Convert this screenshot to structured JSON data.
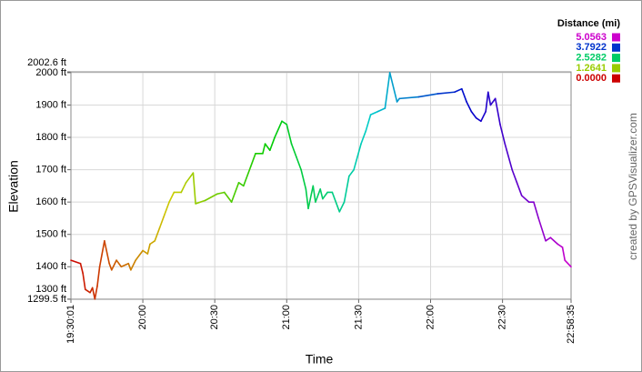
{
  "chart_data": {
    "type": "line",
    "ylabel": "Elevation",
    "xlabel": "Time",
    "credit": "created by GPSVisualizer.com",
    "x": [
      "19:30:01",
      "19:34",
      "19:35",
      "19:36",
      "19:38",
      "19:39",
      "19:40",
      "19:41",
      "19:42",
      "19:43",
      "19:44",
      "19:46",
      "19:47",
      "19:49",
      "19:51",
      "19:54",
      "19:55",
      "19:57",
      "20:00",
      "20:02",
      "20:03",
      "20:05",
      "20:07",
      "20:09",
      "20:11",
      "20:13",
      "20:16",
      "20:18",
      "20:20",
      "20:21",
      "20:22",
      "20:26",
      "20:31",
      "20:34",
      "20:37",
      "20:40",
      "20:42",
      "20:45",
      "20:47",
      "20:50",
      "20:51",
      "20:53",
      "20:55",
      "20:58",
      "21:00",
      "21:02",
      "21:04",
      "21:06",
      "21:08",
      "21:09",
      "21:11",
      "21:12",
      "21:14",
      "21:15",
      "21:17",
      "21:19",
      "21:22",
      "21:24",
      "21:26",
      "21:28",
      "21:31",
      "21:33",
      "21:35",
      "21:38",
      "21:41",
      "21:43",
      "21:46",
      "21:47",
      "21:55",
      "22:03",
      "22:10",
      "22:13",
      "22:15",
      "22:17",
      "22:19",
      "22:21",
      "22:23",
      "22:24",
      "22:25",
      "22:27",
      "22:29",
      "22:31",
      "22:34",
      "22:36",
      "22:38",
      "22:41",
      "22:43",
      "22:45",
      "22:48",
      "22:50",
      "22:53",
      "22:55",
      "22:56",
      "22:58:35"
    ],
    "values": [
      1420,
      1410,
      1380,
      1330,
      1320,
      1335,
      1300,
      1340,
      1400,
      1440,
      1480,
      1410,
      1390,
      1420,
      1400,
      1410,
      1390,
      1420,
      1450,
      1440,
      1470,
      1480,
      1520,
      1560,
      1600,
      1630,
      1630,
      1660,
      1680,
      1690,
      1595,
      1605,
      1625,
      1630,
      1600,
      1660,
      1650,
      1710,
      1750,
      1750,
      1780,
      1760,
      1800,
      1850,
      1840,
      1780,
      1740,
      1700,
      1640,
      1580,
      1650,
      1600,
      1640,
      1610,
      1630,
      1630,
      1570,
      1600,
      1680,
      1700,
      1780,
      1820,
      1870,
      1880,
      1890,
      2000,
      1910,
      1920,
      1925,
      1935,
      1940,
      1950,
      1910,
      1880,
      1860,
      1850,
      1880,
      1940,
      1900,
      1920,
      1840,
      1780,
      1700,
      1660,
      1620,
      1600,
      1600,
      1550,
      1480,
      1490,
      1470,
      1460,
      1420,
      1400
    ],
    "xlim": [
      "19:30:01",
      "22:58:35"
    ],
    "xticks": [
      "19:30:01",
      "20:00",
      "20:30",
      "21:00",
      "21:30",
      "22:00",
      "22:30",
      "22:58:35"
    ],
    "ylim": [
      1299.5,
      2002.6
    ],
    "yticks": [
      {
        "value": 1299.5,
        "label": "1299.5 ft"
      },
      {
        "value": 1300,
        "label": "1300 ft"
      },
      {
        "value": 1400,
        "label": "1400 ft"
      },
      {
        "value": 1500,
        "label": "1500 ft"
      },
      {
        "value": 1600,
        "label": "1600 ft"
      },
      {
        "value": 1700,
        "label": "1700 ft"
      },
      {
        "value": 1800,
        "label": "1800 ft"
      },
      {
        "value": 1900,
        "label": "1900 ft"
      },
      {
        "value": 2000,
        "label": "2000 ft"
      },
      {
        "value": 2002.6,
        "label": "2002.6 ft"
      }
    ],
    "grid": true,
    "color_legend": {
      "title": "Distance (mi)",
      "items": [
        {
          "value": 5.0563,
          "label": "5.0563",
          "color": "#cc00cc"
        },
        {
          "value": 3.7922,
          "label": "3.7922",
          "color": "#0033cc"
        },
        {
          "value": 2.5282,
          "label": "2.5282",
          "color": "#00cc66"
        },
        {
          "value": 1.2641,
          "label": "1.2641",
          "color": "#99cc00"
        },
        {
          "value": 0,
          "label": "0.0000",
          "color": "#cc0000"
        }
      ]
    }
  }
}
